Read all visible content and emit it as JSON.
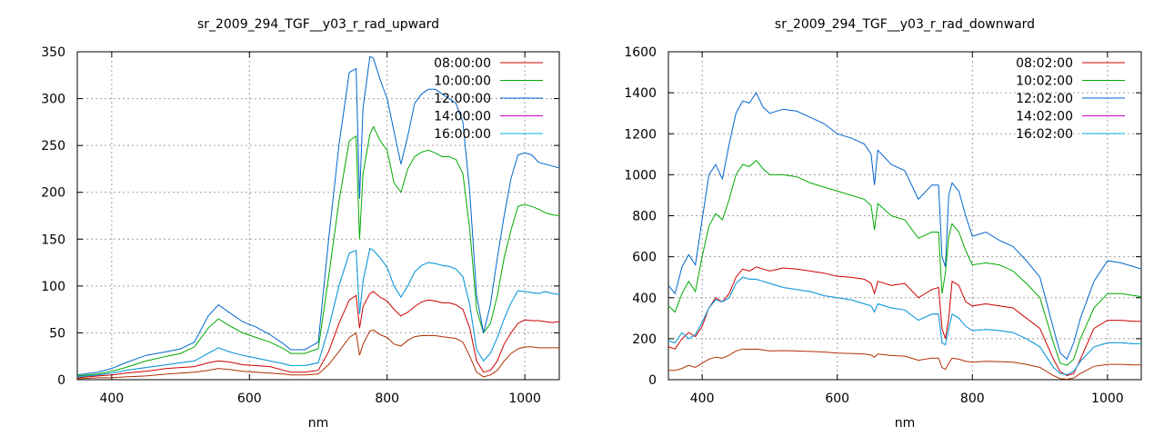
{
  "chart_data": [
    {
      "type": "line",
      "title": "sr_2009_294_TGF__y03_r_rad_upward",
      "xlabel": "nm",
      "ylabel": "",
      "xlim": [
        350,
        1050
      ],
      "ylim": [
        0,
        350
      ],
      "xticks": [
        400,
        600,
        800,
        1000
      ],
      "yticks": [
        0,
        50,
        100,
        150,
        200,
        250,
        300,
        350
      ],
      "grid": true,
      "legend_position": "top-right",
      "x": [
        350,
        380,
        400,
        420,
        450,
        480,
        500,
        520,
        540,
        555,
        570,
        590,
        610,
        630,
        650,
        660,
        680,
        700,
        715,
        730,
        745,
        755,
        760,
        765,
        775,
        780,
        790,
        800,
        810,
        820,
        830,
        840,
        850,
        860,
        870,
        880,
        890,
        900,
        910,
        920,
        930,
        940,
        950,
        960,
        970,
        980,
        990,
        1000,
        1010,
        1020,
        1030,
        1040,
        1050
      ],
      "series": [
        {
          "name": "08:00:00",
          "color": "#cc0000",
          "values": [
            2,
            4,
            5,
            7,
            9,
            12,
            13,
            14,
            18,
            20,
            19,
            16,
            15,
            14,
            10,
            8,
            8,
            10,
            30,
            60,
            85,
            90,
            55,
            78,
            92,
            94,
            88,
            84,
            75,
            68,
            72,
            78,
            83,
            85,
            84,
            82,
            82,
            80,
            75,
            55,
            20,
            8,
            10,
            20,
            38,
            50,
            60,
            64,
            63,
            63,
            62,
            61,
            62
          ]
        },
        {
          "name": "10:00:00",
          "color": "#00aa00",
          "values": [
            4,
            6,
            9,
            13,
            20,
            25,
            28,
            35,
            55,
            65,
            58,
            50,
            45,
            40,
            33,
            28,
            28,
            33,
            110,
            190,
            255,
            260,
            150,
            220,
            262,
            270,
            255,
            245,
            210,
            200,
            225,
            238,
            243,
            245,
            242,
            238,
            238,
            235,
            220,
            160,
            75,
            50,
            60,
            90,
            130,
            160,
            185,
            187,
            185,
            182,
            178,
            176,
            175
          ]
        },
        {
          "name": "12:00:00",
          "color": "#0066cc",
          "values": [
            5,
            8,
            12,
            18,
            26,
            30,
            33,
            40,
            68,
            80,
            72,
            62,
            56,
            48,
            38,
            32,
            32,
            40,
            150,
            250,
            328,
            332,
            193,
            290,
            345,
            343,
            320,
            300,
            265,
            230,
            260,
            295,
            305,
            310,
            310,
            305,
            300,
            295,
            275,
            200,
            90,
            50,
            80,
            130,
            175,
            215,
            240,
            242,
            240,
            232,
            230,
            228,
            226
          ]
        },
        {
          "name": "14:00:00",
          "color": "#cc00cc",
          "values": [
            3,
            5,
            7,
            10,
            13,
            16,
            18,
            20,
            28,
            34,
            30,
            26,
            23,
            20,
            17,
            15,
            15,
            18,
            55,
            100,
            135,
            138,
            70,
            105,
            140,
            138,
            130,
            120,
            100,
            88,
            100,
            115,
            122,
            125,
            124,
            122,
            121,
            118,
            110,
            80,
            32,
            20,
            28,
            45,
            65,
            82,
            95,
            94,
            93,
            92,
            94,
            92,
            91
          ]
        },
        {
          "name": "16:00:00",
          "color": "#00b4dc",
          "values": [
            3,
            5,
            7,
            10,
            13,
            16,
            18,
            20,
            28,
            34,
            30,
            26,
            23,
            20,
            17,
            15,
            15,
            18,
            55,
            100,
            135,
            138,
            70,
            105,
            140,
            138,
            130,
            120,
            100,
            88,
            100,
            115,
            122,
            125,
            124,
            122,
            121,
            118,
            110,
            80,
            32,
            20,
            28,
            45,
            65,
            82,
            95,
            94,
            93,
            92,
            94,
            92,
            91
          ]
        },
        {
          "name": "",
          "color": "#b03000",
          "values": [
            1,
            2,
            2,
            3,
            4,
            6,
            7,
            8,
            10,
            12,
            11,
            9,
            8,
            7,
            6,
            5,
            5,
            6,
            16,
            30,
            45,
            50,
            26,
            38,
            52,
            53,
            48,
            45,
            38,
            36,
            42,
            46,
            47,
            47,
            47,
            46,
            45,
            44,
            40,
            25,
            8,
            3,
            5,
            10,
            20,
            28,
            33,
            35,
            35,
            34,
            34,
            34,
            34
          ]
        }
      ]
    },
    {
      "type": "line",
      "title": "sr_2009_294_TGF__y03_r_rad_downward",
      "xlabel": "nm",
      "ylabel": "",
      "xlim": [
        350,
        1050
      ],
      "ylim": [
        0,
        1600
      ],
      "xticks": [
        400,
        600,
        800,
        1000
      ],
      "yticks": [
        0,
        200,
        400,
        600,
        800,
        1000,
        1200,
        1400,
        1600
      ],
      "grid": true,
      "legend_position": "top-right",
      "x": [
        350,
        360,
        370,
        380,
        390,
        400,
        410,
        420,
        430,
        440,
        450,
        460,
        470,
        480,
        490,
        500,
        520,
        540,
        560,
        580,
        600,
        620,
        640,
        650,
        655,
        660,
        680,
        700,
        720,
        740,
        750,
        755,
        760,
        765,
        770,
        780,
        790,
        800,
        820,
        840,
        860,
        880,
        900,
        920,
        930,
        940,
        950,
        960,
        980,
        1000,
        1020,
        1040,
        1050
      ],
      "series": [
        {
          "name": "08:02:00",
          "color": "#cc0000",
          "values": [
            160,
            150,
            200,
            230,
            210,
            260,
            350,
            400,
            380,
            420,
            500,
            540,
            530,
            550,
            540,
            530,
            545,
            540,
            530,
            520,
            505,
            500,
            490,
            470,
            420,
            480,
            460,
            470,
            400,
            440,
            450,
            250,
            200,
            300,
            480,
            460,
            380,
            360,
            370,
            360,
            350,
            300,
            250,
            100,
            40,
            20,
            30,
            100,
            250,
            290,
            290,
            285,
            285
          ]
        },
        {
          "name": "10:02:00",
          "color": "#00aa00",
          "values": [
            360,
            330,
            420,
            480,
            430,
            600,
            750,
            810,
            780,
            880,
            1000,
            1050,
            1040,
            1070,
            1030,
            1000,
            1000,
            990,
            960,
            940,
            920,
            900,
            880,
            850,
            730,
            860,
            800,
            780,
            690,
            720,
            720,
            420,
            520,
            700,
            760,
            720,
            630,
            560,
            570,
            560,
            530,
            470,
            400,
            180,
            80,
            70,
            100,
            200,
            350,
            420,
            420,
            410,
            405
          ]
        },
        {
          "name": "12:02:00",
          "color": "#0066cc",
          "values": [
            460,
            420,
            550,
            610,
            560,
            780,
            1000,
            1050,
            980,
            1150,
            1300,
            1360,
            1350,
            1400,
            1330,
            1300,
            1320,
            1310,
            1280,
            1250,
            1200,
            1180,
            1150,
            1100,
            950,
            1120,
            1050,
            1020,
            880,
            950,
            950,
            600,
            550,
            900,
            960,
            920,
            800,
            700,
            720,
            680,
            650,
            580,
            500,
            250,
            130,
            100,
            180,
            300,
            480,
            580,
            570,
            550,
            540
          ]
        },
        {
          "name": "14:02:00",
          "color": "#cc00cc",
          "values": [
            190,
            180,
            230,
            200,
            220,
            280,
            350,
            390,
            380,
            400,
            470,
            500,
            490,
            490,
            480,
            470,
            450,
            440,
            430,
            410,
            400,
            390,
            370,
            360,
            330,
            370,
            350,
            340,
            290,
            320,
            320,
            180,
            170,
            250,
            320,
            300,
            260,
            240,
            245,
            240,
            230,
            200,
            160,
            60,
            30,
            25,
            40,
            90,
            160,
            180,
            180,
            175,
            175
          ]
        },
        {
          "name": "16:02:00",
          "color": "#00b4dc",
          "values": [
            190,
            180,
            230,
            200,
            220,
            280,
            350,
            390,
            380,
            400,
            470,
            500,
            490,
            490,
            480,
            470,
            450,
            440,
            430,
            410,
            400,
            390,
            370,
            360,
            330,
            370,
            350,
            340,
            290,
            320,
            320,
            180,
            170,
            250,
            320,
            300,
            260,
            240,
            245,
            240,
            230,
            200,
            160,
            60,
            30,
            25,
            40,
            90,
            160,
            180,
            180,
            175,
            175
          ]
        },
        {
          "name": "",
          "color": "#b03000",
          "values": [
            45,
            45,
            55,
            70,
            60,
            80,
            100,
            110,
            105,
            120,
            140,
            150,
            148,
            150,
            145,
            140,
            142,
            140,
            138,
            135,
            130,
            128,
            125,
            120,
            110,
            125,
            118,
            115,
            95,
            105,
            105,
            60,
            50,
            80,
            105,
            100,
            90,
            85,
            90,
            88,
            85,
            75,
            60,
            20,
            5,
            2,
            8,
            30,
            65,
            75,
            75,
            72,
            72
          ]
        }
      ]
    }
  ]
}
